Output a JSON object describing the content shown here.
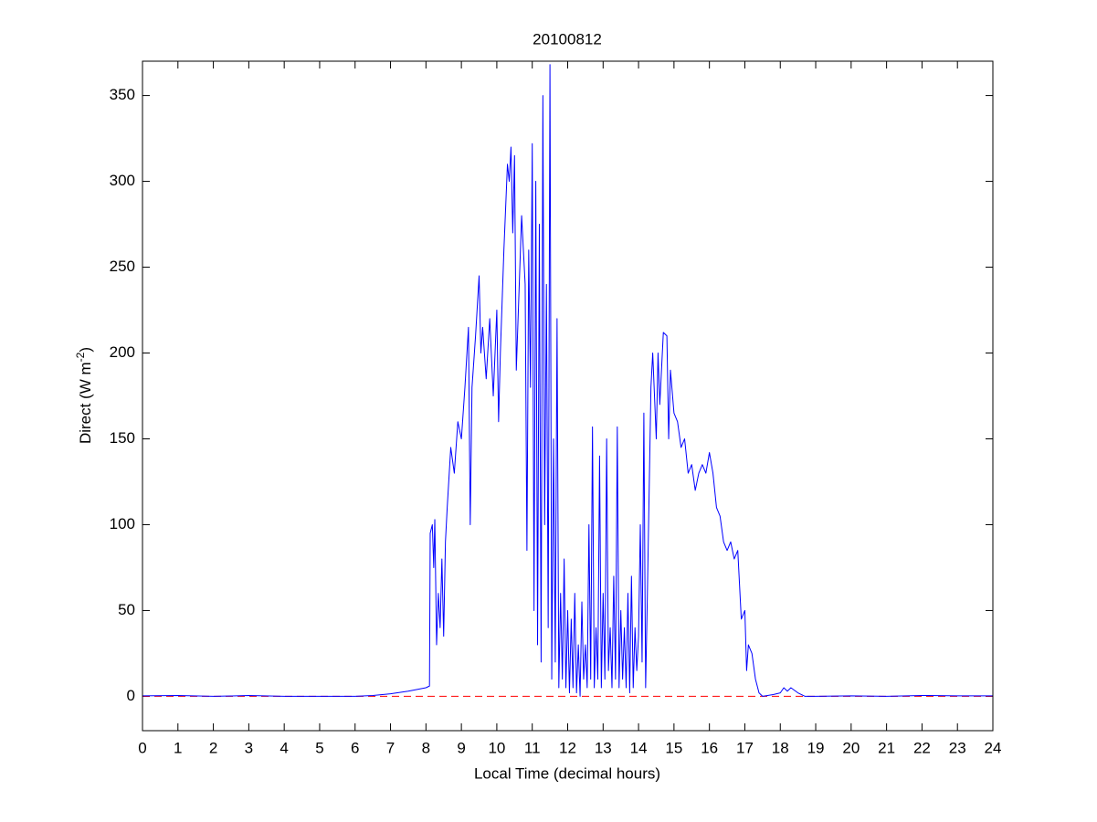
{
  "chart_data": {
    "type": "line",
    "title": "20100812",
    "xlabel": "Local Time (decimal hours)",
    "ylabel": {
      "text": "Direct (W m",
      "superscript": "-2",
      "suffix": ")"
    },
    "xlim": [
      0,
      24
    ],
    "xticks": [
      0,
      1,
      2,
      3,
      4,
      5,
      6,
      7,
      8,
      9,
      10,
      11,
      12,
      13,
      14,
      15,
      16,
      17,
      18,
      19,
      20,
      21,
      22,
      23,
      24
    ],
    "ylim": [
      -20,
      370
    ],
    "yticks": [
      0,
      50,
      100,
      150,
      200,
      250,
      300,
      350
    ],
    "reference_line": {
      "value": 0,
      "color": "#ff0000",
      "style": "dashed"
    },
    "series": [
      {
        "color": "#0000ff",
        "x": [
          0,
          1,
          2,
          2.5,
          3,
          4,
          6,
          6.5,
          7,
          7.5,
          8,
          8.1,
          8.12,
          8.18,
          8.22,
          8.25,
          8.3,
          8.35,
          8.4,
          8.45,
          8.5,
          8.55,
          8.6,
          8.7,
          8.8,
          8.9,
          9.0,
          9.1,
          9.2,
          9.25,
          9.3,
          9.4,
          9.5,
          9.55,
          9.6,
          9.7,
          9.8,
          9.9,
          10.0,
          10.05,
          10.1,
          10.2,
          10.3,
          10.35,
          10.4,
          10.45,
          10.5,
          10.55,
          10.6,
          10.7,
          10.75,
          10.8,
          10.85,
          10.9,
          10.95,
          11.0,
          11.05,
          11.1,
          11.15,
          11.2,
          11.25,
          11.3,
          11.35,
          11.4,
          11.45,
          11.5,
          11.55,
          11.6,
          11.65,
          11.7,
          11.75,
          11.8,
          11.85,
          11.9,
          11.95,
          12.0,
          12.05,
          12.1,
          12.15,
          12.2,
          12.25,
          12.3,
          12.35,
          12.4,
          12.45,
          12.5,
          12.55,
          12.6,
          12.65,
          12.7,
          12.75,
          12.8,
          12.85,
          12.9,
          12.95,
          13.0,
          13.05,
          13.1,
          13.15,
          13.2,
          13.25,
          13.3,
          13.35,
          13.4,
          13.45,
          13.5,
          13.55,
          13.6,
          13.65,
          13.7,
          13.75,
          13.8,
          13.85,
          13.9,
          13.95,
          14.0,
          14.05,
          14.1,
          14.15,
          14.2,
          14.25,
          14.3,
          14.35,
          14.4,
          14.5,
          14.55,
          14.6,
          14.7,
          14.8,
          14.85,
          14.9,
          15.0,
          15.1,
          15.2,
          15.3,
          15.4,
          15.5,
          15.6,
          15.7,
          15.8,
          15.9,
          16.0,
          16.1,
          16.2,
          16.3,
          16.4,
          16.5,
          16.6,
          16.7,
          16.8,
          16.9,
          17.0,
          17.05,
          17.1,
          17.2,
          17.3,
          17.4,
          17.5,
          17.8,
          18.0,
          18.1,
          18.2,
          18.3,
          18.5,
          18.7,
          19,
          20,
          21,
          22,
          23,
          24
        ],
        "values": [
          0.3,
          0.5,
          0,
          0.2,
          0.5,
          0,
          0,
          0.5,
          1.5,
          3,
          5,
          6,
          95,
          100,
          75,
          103,
          30,
          60,
          40,
          80,
          35,
          90,
          110,
          145,
          130,
          160,
          150,
          180,
          215,
          100,
          180,
          210,
          245,
          200,
          215,
          185,
          220,
          175,
          225,
          160,
          200,
          260,
          310,
          300,
          320,
          270,
          315,
          190,
          220,
          280,
          260,
          240,
          85,
          260,
          180,
          322,
          50,
          300,
          30,
          275,
          20,
          350,
          100,
          240,
          40,
          368,
          10,
          150,
          20,
          220,
          5,
          60,
          10,
          80,
          5,
          50,
          2,
          45,
          5,
          60,
          2,
          30,
          0,
          55,
          10,
          30,
          5,
          100,
          10,
          157,
          5,
          40,
          10,
          140,
          5,
          60,
          10,
          150,
          15,
          40,
          5,
          70,
          10,
          157,
          5,
          50,
          10,
          40,
          5,
          60,
          2,
          70,
          5,
          40,
          15,
          35,
          100,
          20,
          165,
          5,
          60,
          120,
          180,
          200,
          150,
          200,
          170,
          212,
          210,
          150,
          190,
          165,
          160,
          145,
          150,
          130,
          135,
          120,
          130,
          135,
          130,
          142,
          130,
          110,
          105,
          90,
          85,
          90,
          80,
          85,
          45,
          50,
          15,
          30,
          25,
          10,
          2,
          0,
          1,
          2,
          5,
          3,
          5,
          2,
          0,
          0,
          0.3,
          0,
          0.5,
          0.3,
          0.3
        ]
      }
    ]
  }
}
